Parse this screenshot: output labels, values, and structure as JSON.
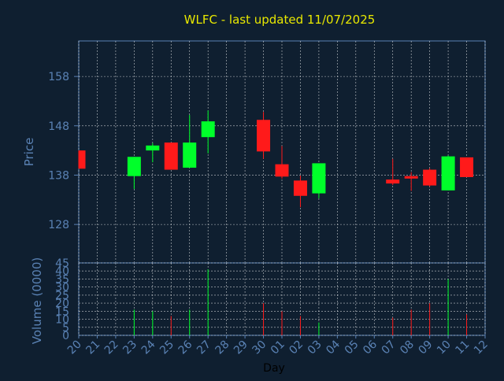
{
  "title": "WLFC - last updated 11/07/2025",
  "colors": {
    "background": "#0f1f30",
    "axis": "#5a82b4",
    "tick_text": "#5a82b4",
    "title": "#e8e800",
    "xlabel": "#000000",
    "up": "#00ff2a",
    "down": "#ff1a1a",
    "grid": "#ffffff"
  },
  "chart_data": [
    {
      "type": "candlestick",
      "ylabel": "Price",
      "xlabel": "",
      "ylim": [
        120.2,
        165.2
      ],
      "yticks": [
        128,
        138,
        148,
        158
      ],
      "grid": true,
      "categories": [
        "20",
        "21",
        "22",
        "23",
        "24",
        "25",
        "26",
        "27",
        "28",
        "29",
        "30",
        "01",
        "02",
        "03",
        "04",
        "05",
        "06",
        "07",
        "08",
        "09",
        "10",
        "11",
        "12"
      ],
      "candles": [
        {
          "x": "20",
          "open": 143.0,
          "high": 143.0,
          "low": 139.3,
          "close": 139.3
        },
        {
          "x": "23",
          "open": 137.8,
          "high": 141.7,
          "low": 135.2,
          "close": 141.7
        },
        {
          "x": "24",
          "open": 143.0,
          "high": 144.5,
          "low": 140.6,
          "close": 144.0
        },
        {
          "x": "25",
          "open": 144.6,
          "high": 144.6,
          "low": 139.1,
          "close": 139.1
        },
        {
          "x": "26",
          "open": 139.5,
          "high": 150.2,
          "low": 139.5,
          "close": 144.6
        },
        {
          "x": "27",
          "open": 145.7,
          "high": 151.1,
          "low": 142.4,
          "close": 148.9
        },
        {
          "x": "30",
          "open": 149.2,
          "high": 150.8,
          "low": 141.3,
          "close": 142.8
        },
        {
          "x": "01",
          "open": 140.2,
          "high": 143.9,
          "low": 137.3,
          "close": 137.7
        },
        {
          "x": "02",
          "open": 136.9,
          "high": 137.9,
          "low": 131.5,
          "close": 133.8
        },
        {
          "x": "03",
          "open": 134.3,
          "high": 140.4,
          "low": 133.3,
          "close": 140.4
        },
        {
          "x": "07",
          "open": 137.1,
          "high": 141.3,
          "low": 136.0,
          "close": 136.3
        },
        {
          "x": "08",
          "open": 137.8,
          "high": 138.6,
          "low": 134.8,
          "close": 137.3
        },
        {
          "x": "09",
          "open": 139.1,
          "high": 139.4,
          "low": 135.7,
          "close": 135.9
        },
        {
          "x": "10",
          "open": 134.9,
          "high": 142.0,
          "low": 134.9,
          "close": 141.8
        },
        {
          "x": "11",
          "open": 141.6,
          "high": 141.6,
          "low": 137.6,
          "close": 137.6
        }
      ]
    },
    {
      "type": "bar",
      "ylabel": "Volume (0000)",
      "xlabel": "Day",
      "ylim": [
        0,
        45
      ],
      "yticks": [
        0,
        5,
        10,
        15,
        20,
        25,
        30,
        35,
        40,
        45
      ],
      "grid": true,
      "categories": [
        "20",
        "21",
        "22",
        "23",
        "24",
        "25",
        "26",
        "27",
        "28",
        "29",
        "30",
        "01",
        "02",
        "03",
        "04",
        "05",
        "06",
        "07",
        "08",
        "09",
        "10",
        "11",
        "12"
      ],
      "bars": [
        {
          "x": "23",
          "value": 16,
          "direction": "up"
        },
        {
          "x": "24",
          "value": 15,
          "direction": "up"
        },
        {
          "x": "25",
          "value": 12,
          "direction": "down"
        },
        {
          "x": "26",
          "value": 16,
          "direction": "up"
        },
        {
          "x": "27",
          "value": 41,
          "direction": "up"
        },
        {
          "x": "30",
          "value": 20,
          "direction": "down"
        },
        {
          "x": "01",
          "value": 15,
          "direction": "down"
        },
        {
          "x": "02",
          "value": 12,
          "direction": "down"
        },
        {
          "x": "03",
          "value": 8,
          "direction": "up"
        },
        {
          "x": "07",
          "value": 11,
          "direction": "down"
        },
        {
          "x": "08",
          "value": 16,
          "direction": "down"
        },
        {
          "x": "09",
          "value": 20,
          "direction": "down"
        },
        {
          "x": "10",
          "value": 35,
          "direction": "up"
        },
        {
          "x": "11",
          "value": 13,
          "direction": "down"
        }
      ]
    }
  ]
}
